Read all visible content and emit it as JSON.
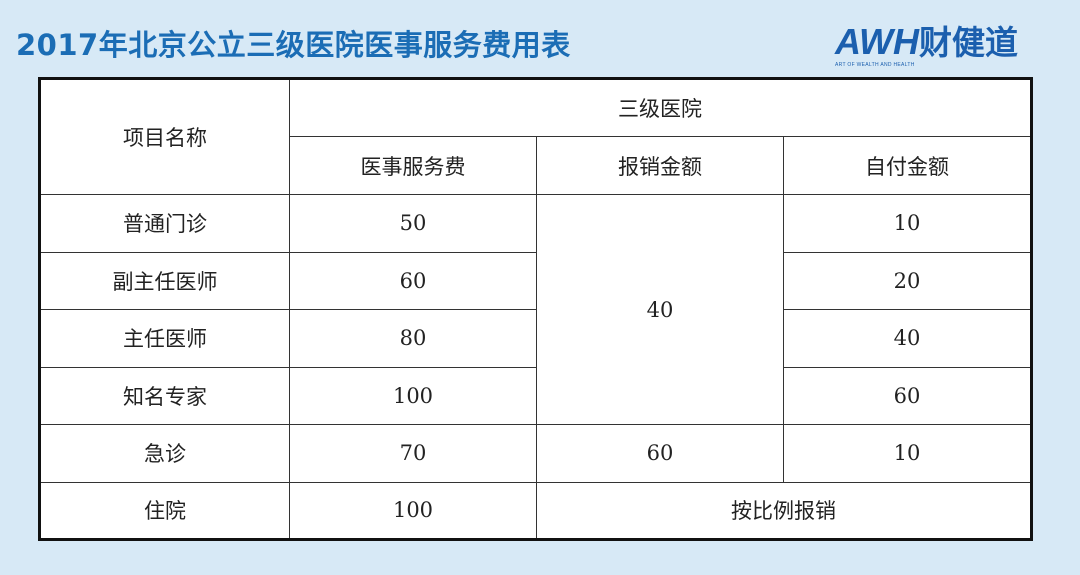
{
  "title": "2017年北京公立三级医院医事服务费用表",
  "logo": {
    "brand": "AWH",
    "brand_cn": "财健道",
    "tagline": "ART OF WEALTH AND HEALTH",
    "color": "#1b5fae",
    "accent": "#f08a1c"
  },
  "table": {
    "col_item": "项目名称",
    "group_header": "三级医院",
    "sub_headers": [
      "医事服务费",
      "报销金额",
      "自付金额"
    ],
    "rows": [
      {
        "name": "普通门诊",
        "fee": "50",
        "self": "10"
      },
      {
        "name": "副主任医师",
        "fee": "60",
        "self": "20"
      },
      {
        "name": "主任医师",
        "fee": "80",
        "self": "40"
      },
      {
        "name": "知名专家",
        "fee": "100",
        "self": "60"
      },
      {
        "name": "急诊",
        "fee": "70",
        "reimburse": "60",
        "self": "10"
      },
      {
        "name": "住院",
        "fee": "100",
        "reimburse_merged": "按比例报销"
      }
    ],
    "merged_reimburse": "40"
  }
}
